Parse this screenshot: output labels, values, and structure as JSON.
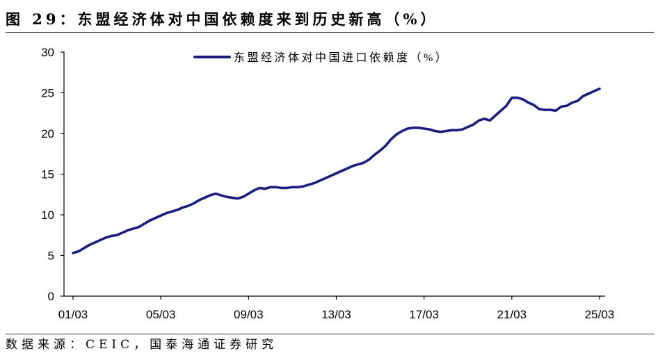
{
  "chart_data": {
    "type": "line",
    "title": "图 29：东盟经济体对中国依赖度来到历史新高（%）",
    "xlabel": "",
    "ylabel": "",
    "ylim": [
      0,
      30
    ],
    "yticks": [
      0,
      5,
      10,
      15,
      20,
      25,
      30
    ],
    "xticks": [
      "01/03",
      "05/03",
      "09/03",
      "13/03",
      "17/03",
      "21/03",
      "25/03"
    ],
    "grid": false,
    "legend": "top",
    "x": [
      "2001-03",
      "2001-06",
      "2001-09",
      "2001-12",
      "2002-03",
      "2002-06",
      "2002-09",
      "2002-12",
      "2003-03",
      "2003-06",
      "2003-09",
      "2003-12",
      "2004-03",
      "2004-06",
      "2004-09",
      "2004-12",
      "2005-03",
      "2005-06",
      "2005-09",
      "2005-12",
      "2006-03",
      "2006-06",
      "2006-09",
      "2006-12",
      "2007-03",
      "2007-06",
      "2007-09",
      "2007-12",
      "2008-03",
      "2008-06",
      "2008-09",
      "2008-12",
      "2009-03",
      "2009-06",
      "2009-09",
      "2009-12",
      "2010-03",
      "2010-06",
      "2010-09",
      "2010-12",
      "2011-03",
      "2011-06",
      "2011-09",
      "2011-12",
      "2012-03",
      "2012-06",
      "2012-09",
      "2012-12",
      "2013-03",
      "2013-06",
      "2013-09",
      "2013-12",
      "2014-03",
      "2014-06",
      "2014-09",
      "2014-12",
      "2015-03",
      "2015-06",
      "2015-09",
      "2015-12",
      "2016-03",
      "2016-06",
      "2016-09",
      "2016-12",
      "2017-03",
      "2017-06",
      "2017-09",
      "2017-12",
      "2018-03",
      "2018-06",
      "2018-09",
      "2018-12",
      "2019-03",
      "2019-06",
      "2019-09",
      "2019-12",
      "2020-03",
      "2020-06",
      "2020-09",
      "2020-12",
      "2021-03",
      "2021-06",
      "2021-09",
      "2021-12",
      "2022-03",
      "2022-06",
      "2022-09",
      "2022-12",
      "2023-03",
      "2023-06",
      "2023-09",
      "2023-12",
      "2024-03",
      "2024-06",
      "2024-09",
      "2024-12",
      "2025-03"
    ],
    "series": [
      {
        "name": "东盟经济体对中国进口依赖度（%）",
        "color": "#1b1b80",
        "values": [
          5.3,
          5.5,
          5.9,
          6.3,
          6.6,
          6.9,
          7.2,
          7.4,
          7.5,
          7.8,
          8.1,
          8.3,
          8.5,
          8.9,
          9.3,
          9.6,
          9.9,
          10.2,
          10.4,
          10.6,
          10.9,
          11.1,
          11.4,
          11.8,
          12.1,
          12.4,
          12.6,
          12.4,
          12.2,
          12.1,
          12.0,
          12.2,
          12.6,
          13.0,
          13.3,
          13.2,
          13.4,
          13.4,
          13.3,
          13.3,
          13.4,
          13.4,
          13.5,
          13.7,
          13.9,
          14.2,
          14.5,
          14.8,
          15.1,
          15.4,
          15.7,
          16.0,
          16.2,
          16.4,
          16.8,
          17.4,
          17.9,
          18.5,
          19.3,
          19.9,
          20.3,
          20.6,
          20.7,
          20.7,
          20.6,
          20.5,
          20.3,
          20.2,
          20.3,
          20.4,
          20.4,
          20.5,
          20.8,
          21.1,
          21.6,
          21.8,
          21.6,
          22.2,
          22.8,
          23.4,
          24.4,
          24.4,
          24.2,
          23.8,
          23.5,
          23.0,
          22.9,
          22.9,
          22.8,
          23.3,
          23.4,
          23.8,
          24.0,
          24.6,
          24.9,
          25.2,
          25.5
        ]
      }
    ]
  },
  "figure": {
    "source": "数据来源：CEIC，国泰海通证券研究"
  }
}
